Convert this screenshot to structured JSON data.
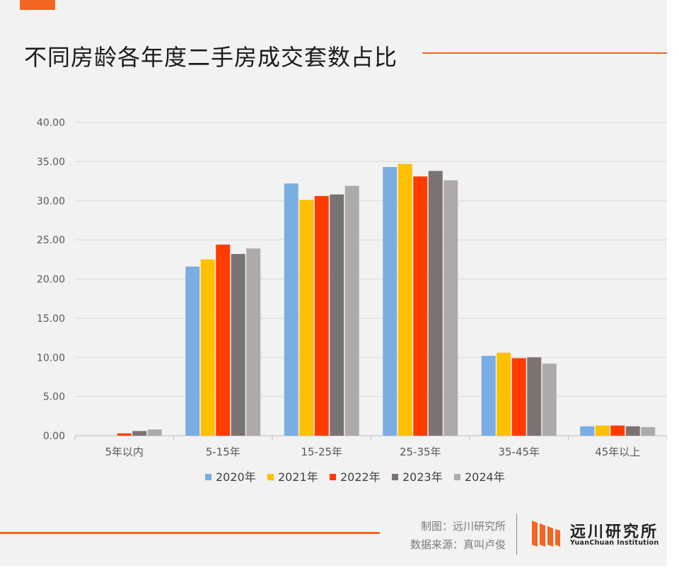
{
  "header": {
    "title": "不同房龄各年度二手房成交套数占比"
  },
  "chart_data": {
    "type": "bar",
    "title": "不同房龄各年度二手房成交套数占比",
    "categories": [
      "5年以内",
      "5-15年",
      "15-25年",
      "25-35年",
      "35-45年",
      "45年以上"
    ],
    "series": [
      {
        "name": "2020年",
        "color": "#7aaee3",
        "values": [
          0.0,
          21.6,
          32.2,
          34.3,
          10.2,
          1.2
        ]
      },
      {
        "name": "2021年",
        "color": "#ffc000",
        "values": [
          0.0,
          22.5,
          30.1,
          34.7,
          10.6,
          1.3
        ]
      },
      {
        "name": "2022年",
        "color": "#ff3c00",
        "values": [
          0.3,
          24.4,
          30.6,
          33.1,
          9.9,
          1.3
        ]
      },
      {
        "name": "2023年",
        "color": "#7b7372",
        "values": [
          0.6,
          23.2,
          30.8,
          33.8,
          10.0,
          1.2
        ]
      },
      {
        "name": "2024年",
        "color": "#aeaaaa",
        "values": [
          0.8,
          23.9,
          31.9,
          32.6,
          9.2,
          1.1
        ]
      }
    ],
    "ylim": [
      0,
      40
    ],
    "yticks": [
      "0.00",
      "5.00",
      "10.00",
      "15.00",
      "20.00",
      "25.00",
      "30.00",
      "35.00",
      "40.00"
    ],
    "grid": true,
    "legend_position": "bottom"
  },
  "footer": {
    "credit_maker": "制图：远川研究所",
    "credit_source": "数据来源：真叫卢俊",
    "logo_cn": "远川研究所",
    "logo_en": "YuanChuan Institution",
    "accent": "#f26522"
  }
}
